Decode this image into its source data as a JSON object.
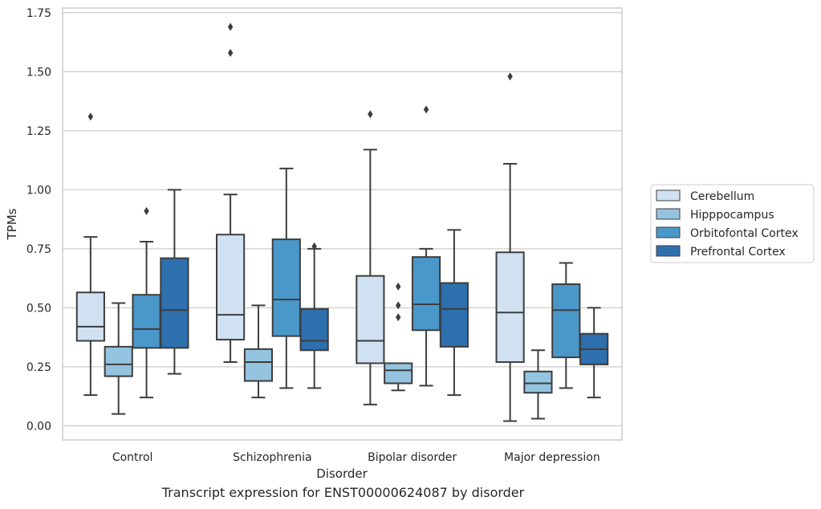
{
  "chart_data": {
    "type": "box",
    "xlabel": "Disorder",
    "ylabel": "TPMs",
    "ylim": [
      -0.06,
      1.77
    ],
    "yticks": [
      "0.00",
      "0.25",
      "0.50",
      "0.75",
      "1.00",
      "1.25",
      "1.50",
      "1.75"
    ],
    "yticks_values": [
      0,
      0.25,
      0.5,
      0.75,
      1.0,
      1.25,
      1.5,
      1.75
    ],
    "grid": true,
    "legend_position": "right",
    "categories": [
      "Control",
      "Schizophrenia",
      "Bipolar disorder",
      "Major depression"
    ],
    "series": [
      {
        "name": "Cerebellum",
        "color": "#d0e1f2",
        "boxes": [
          {
            "whislo": 0.13,
            "q1": 0.36,
            "med": 0.42,
            "q3": 0.565,
            "whishi": 0.8,
            "fliers": [
              1.31
            ]
          },
          {
            "whislo": 0.27,
            "q1": 0.365,
            "med": 0.47,
            "q3": 0.81,
            "whishi": 0.98,
            "fliers": [
              1.58,
              1.69
            ]
          },
          {
            "whislo": 0.09,
            "q1": 0.265,
            "med": 0.36,
            "q3": 0.635,
            "whishi": 1.17,
            "fliers": [
              1.32
            ]
          },
          {
            "whislo": 0.02,
            "q1": 0.27,
            "med": 0.48,
            "q3": 0.735,
            "whishi": 1.11,
            "fliers": [
              1.48
            ]
          }
        ]
      },
      {
        "name": "Hipppocampus",
        "color": "#94c4df",
        "boxes": [
          {
            "whislo": 0.05,
            "q1": 0.21,
            "med": 0.26,
            "q3": 0.335,
            "whishi": 0.52,
            "fliers": []
          },
          {
            "whislo": 0.12,
            "q1": 0.19,
            "med": 0.27,
            "q3": 0.325,
            "whishi": 0.51,
            "fliers": []
          },
          {
            "whislo": 0.15,
            "q1": 0.18,
            "med": 0.235,
            "q3": 0.265,
            "whishi": 0.265,
            "fliers": [
              0.46,
              0.51,
              0.59
            ]
          },
          {
            "whislo": 0.03,
            "q1": 0.14,
            "med": 0.18,
            "q3": 0.23,
            "whishi": 0.32,
            "fliers": []
          }
        ]
      },
      {
        "name": "Orbitofontal Cortex",
        "color": "#4a98c9",
        "boxes": [
          {
            "whislo": 0.12,
            "q1": 0.33,
            "med": 0.41,
            "q3": 0.555,
            "whishi": 0.78,
            "fliers": [
              0.91
            ]
          },
          {
            "whislo": 0.16,
            "q1": 0.38,
            "med": 0.535,
            "q3": 0.79,
            "whishi": 1.09,
            "fliers": []
          },
          {
            "whislo": 0.17,
            "q1": 0.405,
            "med": 0.515,
            "q3": 0.715,
            "whishi": 0.75,
            "fliers": [
              1.34
            ]
          },
          {
            "whislo": 0.16,
            "q1": 0.29,
            "med": 0.49,
            "q3": 0.6,
            "whishi": 0.69,
            "fliers": []
          }
        ]
      },
      {
        "name": "Prefrontal Cortex",
        "color": "#2e6fae",
        "boxes": [
          {
            "whislo": 0.22,
            "q1": 0.33,
            "med": 0.49,
            "q3": 0.71,
            "whishi": 1.0,
            "fliers": []
          },
          {
            "whislo": 0.16,
            "q1": 0.32,
            "med": 0.36,
            "q3": 0.495,
            "whishi": 0.75,
            "fliers": [
              0.76
            ]
          },
          {
            "whislo": 0.13,
            "q1": 0.335,
            "med": 0.495,
            "q3": 0.605,
            "whishi": 0.83,
            "fliers": []
          },
          {
            "whislo": 0.12,
            "q1": 0.26,
            "med": 0.325,
            "q3": 0.39,
            "whishi": 0.5,
            "fliers": []
          }
        ]
      }
    ],
    "caption": "Transcript expression for ENST00000624087 by disorder"
  }
}
